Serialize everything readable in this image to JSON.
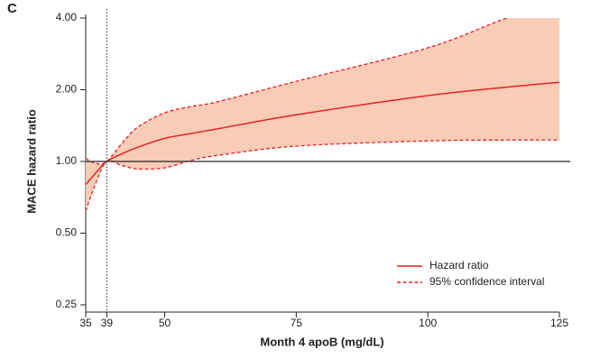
{
  "chart_data": {
    "type": "line",
    "panel_label": "C",
    "x_label": "Month 4 apoB (mg/dL)",
    "y_label": "MACE hazard ratio",
    "x": [
      35,
      37,
      39,
      42,
      45,
      50,
      55,
      60,
      75,
      100,
      115,
      125
    ],
    "series": [
      {
        "name": "Hazard ratio",
        "color": "#e32326",
        "values": [
          0.8,
          0.9,
          1.0,
          1.08,
          1.15,
          1.25,
          1.31,
          1.37,
          1.57,
          1.89,
          2.05,
          2.15
        ]
      },
      {
        "name": "95% confidence interval",
        "color": "#e32326",
        "band_color": "#f9ccb6",
        "values": [
          1.03,
          0.98,
          1.0,
          1.2,
          1.4,
          1.6,
          1.7,
          1.78,
          2.17,
          3.0,
          4.0,
          4.6
        ],
        "lower": [
          0.62,
          0.82,
          1.0,
          0.96,
          0.93,
          0.94,
          1.01,
          1.06,
          1.16,
          1.22,
          1.23,
          1.23
        ]
      }
    ],
    "xlim": [
      35,
      125
    ],
    "xticks": [
      35,
      39,
      50,
      75,
      100,
      125
    ],
    "ylim": [
      0.25,
      4
    ],
    "y_scale": "log",
    "yticks": [
      {
        "value": 0.25,
        "label": "0.25"
      },
      {
        "value": 0.5,
        "label": "0.50"
      },
      {
        "value": 1,
        "label": "1.00"
      },
      {
        "value": 2,
        "label": "2.00"
      },
      {
        "value": 4,
        "label": "4.00"
      }
    ],
    "hline": 1,
    "vline": 39,
    "legend": "lower right"
  }
}
